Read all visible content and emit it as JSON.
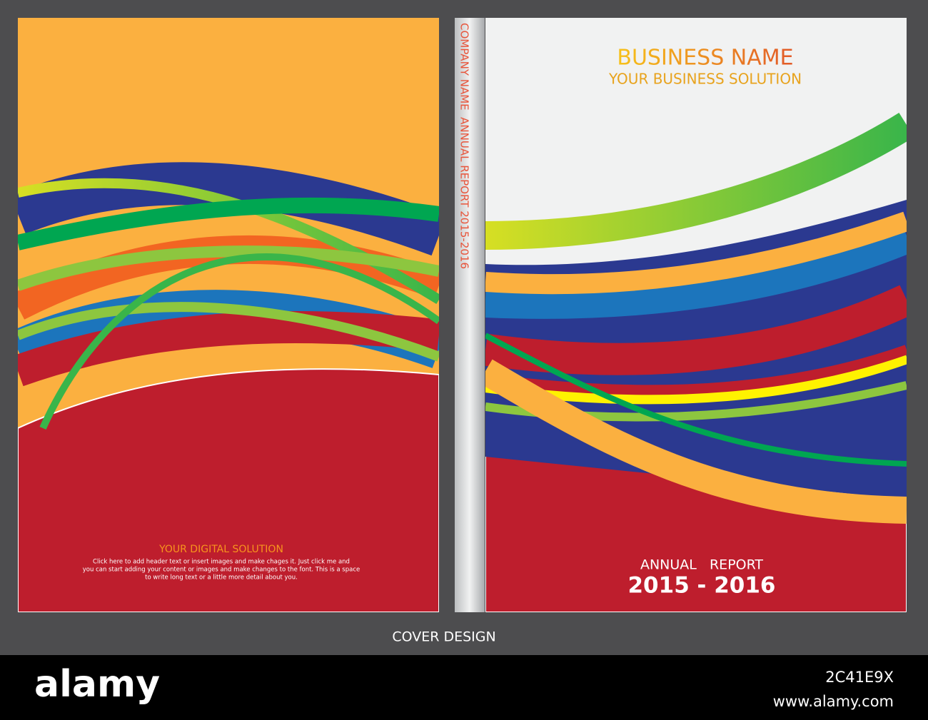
{
  "back": {
    "heading": "YOUR DIGITAL SOLUTION",
    "body": [
      "Click here to add header text or insert images and make chages it. Just click me and",
      "you can start adding your content or images and make changes to the font. This is a space",
      "to write long text or a little more detail about you."
    ]
  },
  "spine": {
    "text": "COMPANY NAME  ANNUAL REPORT 2015-2016"
  },
  "front": {
    "title": "BUSINESS NAME",
    "subtitle": "YOUR BUSINESS SOLUTION",
    "report_label": "ANNUAL   REPORT",
    "years": "2015 - 2016"
  },
  "caption": "COVER DESIGN",
  "footer": {
    "brand": "alamy",
    "image_id": "2C41E9X",
    "url": "www.alamy.com"
  }
}
